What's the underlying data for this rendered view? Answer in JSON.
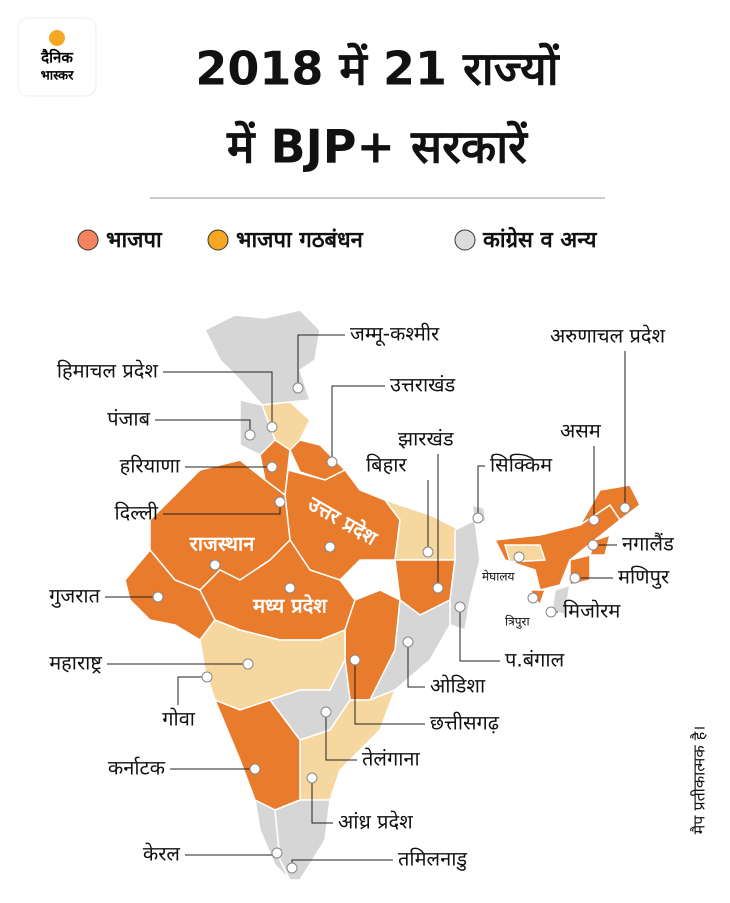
{
  "logo": {
    "line1": "दैनिक",
    "line2": "भास्कर"
  },
  "title": [
    "2018 में 21 राज्यों",
    "में BJP+ सरकारें"
  ],
  "legend": [
    "भाजपा",
    "भाजपा गठबंधन",
    "कांग्रेस व अन्य"
  ],
  "states": [
    "जम्मू-कश्मीर",
    "हिमाचल प्रदेश",
    "उत्तराखंड",
    "पंजाब",
    "हरियाणा",
    "दिल्ली",
    "राजस्थान",
    "उत्तर प्रदेश",
    "मध्य प्रदेश",
    "गुजरात",
    "महाराष्ट्र",
    "गोवा",
    "कर्नाटक",
    "केरल",
    "तमिलनाडु",
    "आंध्र प्रदेश",
    "तेलंगाना",
    "छत्तीसगढ़",
    "ओडिशा",
    "प.बंगाल",
    "झारखंड",
    "बिहार",
    "सिक्किम",
    "मेघालय",
    "त्रिपुरा",
    "मिजोरम",
    "मणिपुर",
    "नगालैंड",
    "असम",
    "अरुणाचल प्रदेश"
  ],
  "note": "मैप प्रतीकात्मक है।"
}
